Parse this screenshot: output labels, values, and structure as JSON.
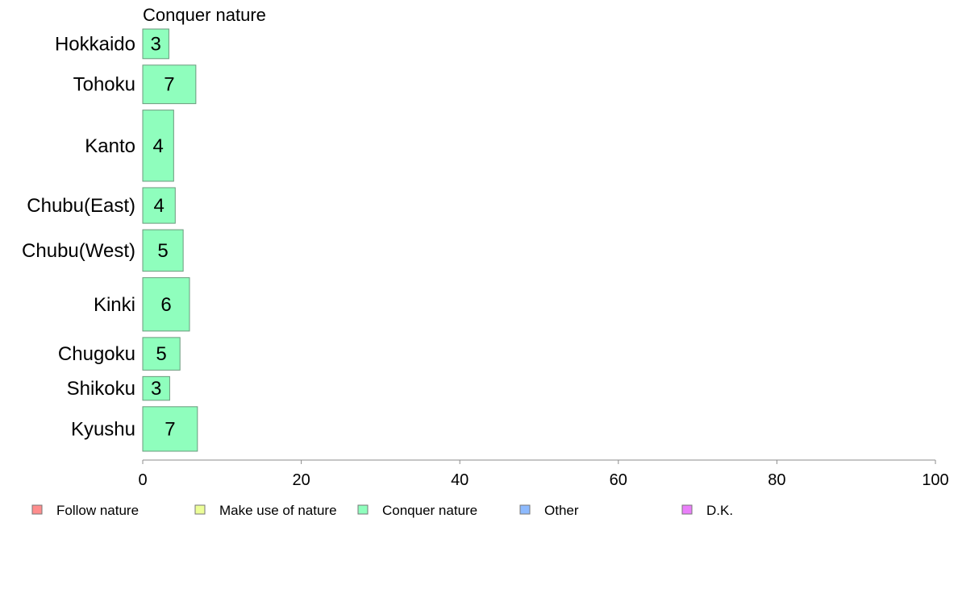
{
  "chart_data": {
    "type": "bar",
    "orientation": "horizontal",
    "title": "Conquer nature",
    "categories": [
      "Hokkaido",
      "Tohoku",
      "Kanto",
      "Chubu(East)",
      "Chubu(West)",
      "Kinki",
      "Chugoku",
      "Shikoku",
      "Kyushu"
    ],
    "relative_bar_widths": [
      0.5,
      0.65,
      1.2,
      0.6,
      0.7,
      0.9,
      0.55,
      0.4,
      0.75
    ],
    "series": [
      {
        "name": "Conquer nature",
        "values": [
          3.3,
          6.7,
          3.9,
          4.1,
          5.1,
          5.9,
          4.7,
          3.4,
          6.9
        ],
        "data_labels": [
          "3",
          "7",
          "4",
          "4",
          "5",
          "6",
          "5",
          "3",
          "7"
        ],
        "color": "#8ffebd"
      }
    ],
    "xlim": [
      0,
      100
    ],
    "xticks": [
      0,
      20,
      40,
      60,
      80,
      100
    ],
    "tick_labels": [
      "0",
      "20",
      "40",
      "60",
      "80",
      "100"
    ],
    "grid": false,
    "legend_position": "bottom",
    "legend": [
      {
        "label": "Follow nature",
        "color": "#ff8d8d"
      },
      {
        "label": "Make use of nature",
        "color": "#ecfe97"
      },
      {
        "label": "Conquer nature",
        "color": "#8ffebd"
      },
      {
        "label": "Other",
        "color": "#8dbafe"
      },
      {
        "label": "D.K.",
        "color": "#ea7ffa"
      }
    ]
  }
}
